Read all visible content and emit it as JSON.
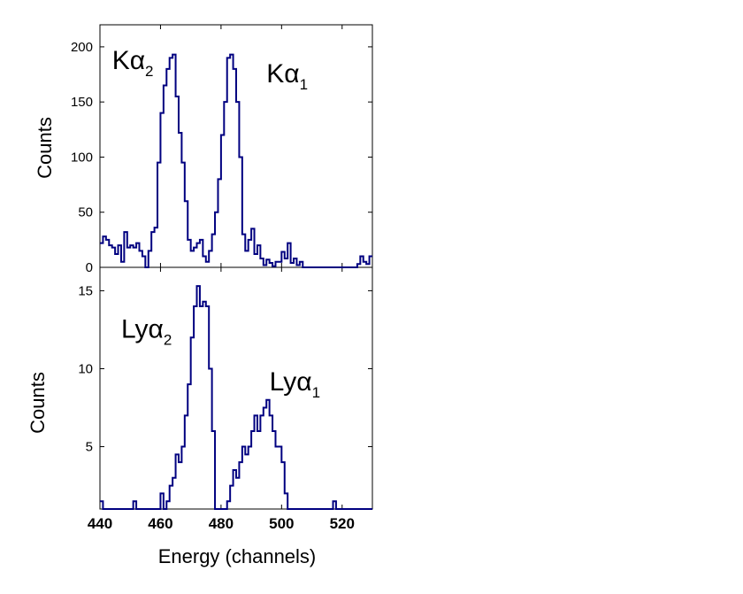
{
  "chart_data": [
    {
      "type": "line",
      "style": "step histogram",
      "ylabel": "Counts",
      "xlim": [
        440,
        530
      ],
      "ylim": [
        0,
        220
      ],
      "yticks": [
        0,
        50,
        100,
        150,
        200
      ],
      "color": "#000080",
      "annotations": [
        {
          "base": "Kα",
          "sub": "2",
          "x": 444,
          "y": 180
        },
        {
          "base": "Kα",
          "sub": "1",
          "x": 495,
          "y": 168
        }
      ],
      "series": [
        {
          "x": [
            440,
            441,
            442,
            443,
            444,
            445,
            446,
            447,
            448,
            449,
            450,
            451,
            452,
            453,
            454,
            455,
            456,
            457,
            458,
            459,
            460,
            461,
            462,
            463,
            464,
            465,
            466,
            467,
            468,
            469,
            470,
            471,
            472,
            473,
            474,
            475,
            476,
            477,
            478,
            479,
            480,
            481,
            482,
            483,
            484,
            485,
            486,
            487,
            488,
            489,
            490,
            491,
            492,
            493,
            494,
            495,
            496,
            497,
            498,
            499,
            500,
            501,
            502,
            503,
            504,
            505,
            506,
            507,
            508,
            509,
            510,
            511,
            512,
            513,
            514,
            515,
            516,
            517,
            518,
            519,
            520,
            521,
            522,
            523,
            524,
            525,
            526,
            527,
            528,
            529,
            530
          ],
          "values": [
            22,
            28,
            25,
            20,
            18,
            12,
            20,
            5,
            32,
            18,
            20,
            18,
            22,
            15,
            10,
            0,
            15,
            32,
            36,
            95,
            140,
            165,
            180,
            190,
            193,
            155,
            122,
            95,
            60,
            25,
            15,
            18,
            22,
            25,
            10,
            5,
            15,
            30,
            50,
            80,
            120,
            150,
            190,
            193,
            180,
            150,
            100,
            30,
            15,
            25,
            35,
            12,
            20,
            8,
            2,
            7,
            4,
            1,
            5,
            5,
            14,
            8,
            22,
            4,
            8,
            2,
            5,
            0,
            0,
            0,
            0,
            0,
            0,
            0,
            0,
            0,
            0,
            0,
            0,
            0,
            0,
            0,
            0,
            0,
            0,
            3,
            10,
            5,
            3,
            10,
            8
          ],
          "values_note": "trailing values after 500 estimated"
        }
      ]
    },
    {
      "type": "line",
      "style": "step histogram",
      "ylabel": "Counts",
      "xlabel": "Energy (channels)",
      "xlim": [
        440,
        530
      ],
      "ylim": [
        1,
        16.5
      ],
      "yticks": [
        5,
        10,
        15
      ],
      "xticks": [
        440,
        460,
        480,
        500,
        520
      ],
      "color": "#000080",
      "annotations": [
        {
          "base": "Lyα",
          "sub": "2",
          "x": 447,
          "y": 12
        },
        {
          "base": "Lyα",
          "sub": "1",
          "x": 496,
          "y": 8.6
        }
      ],
      "series": [
        {
          "x": [
            440,
            441,
            442,
            443,
            444,
            445,
            446,
            447,
            448,
            449,
            450,
            451,
            452,
            453,
            454,
            455,
            456,
            457,
            458,
            459,
            460,
            461,
            462,
            463,
            464,
            465,
            466,
            467,
            468,
            469,
            470,
            471,
            472,
            473,
            474,
            475,
            476,
            477,
            478,
            479,
            480,
            481,
            482,
            483,
            484,
            485,
            486,
            487,
            488,
            489,
            490,
            491,
            492,
            493,
            494,
            495,
            496,
            497,
            498,
            499,
            500,
            501,
            502,
            503,
            504,
            505,
            506,
            507,
            508,
            509,
            510,
            511,
            512,
            513,
            514,
            515,
            516,
            517,
            518,
            519,
            520,
            521,
            522,
            523,
            524,
            525,
            526,
            527,
            528,
            529,
            530
          ],
          "values": [
            1.5,
            1,
            1,
            1,
            1,
            1,
            1,
            1,
            1,
            1,
            1,
            1.5,
            1,
            1,
            1,
            1,
            1,
            1,
            1,
            1,
            2,
            1,
            1.5,
            2.5,
            3,
            4.5,
            4,
            5,
            7,
            9,
            12,
            14,
            15.3,
            14,
            14.3,
            14,
            10,
            6,
            1,
            1,
            1,
            1,
            1.5,
            2.5,
            3.5,
            3,
            4,
            5,
            4.5,
            5,
            6,
            7,
            6,
            7,
            7.5,
            8,
            7,
            6,
            5,
            5,
            4,
            2,
            1,
            1,
            1,
            1,
            1,
            1,
            1,
            1,
            1,
            1,
            1,
            1,
            1,
            1,
            1,
            1.5,
            1,
            1,
            1,
            1,
            1,
            1,
            1,
            1,
            1,
            1,
            1,
            1,
            1
          ]
        }
      ]
    }
  ]
}
